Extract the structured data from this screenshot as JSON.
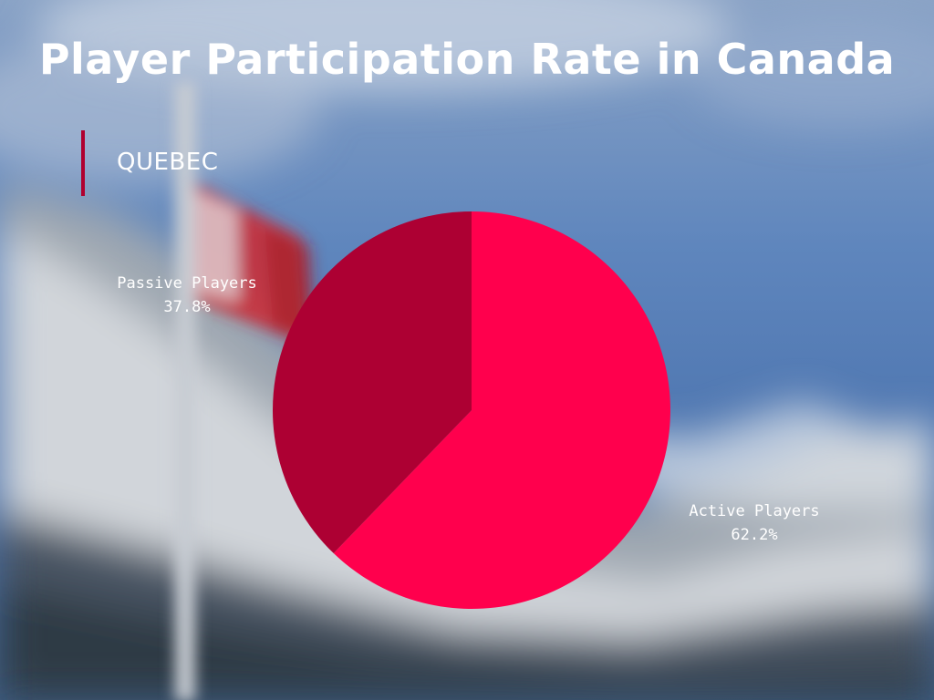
{
  "chart_data": {
    "type": "pie",
    "title": "Player Participation Rate in Canada",
    "subtitle": "QUEBEC",
    "slices": [
      {
        "label": "Active Players",
        "value": 62.2,
        "display": "62.2%",
        "color": "#ff004d"
      },
      {
        "label": "Passive Players",
        "value": 37.8,
        "display": "37.8%",
        "color": "#ad0033"
      }
    ],
    "start_angle_deg": 0,
    "direction": "clockwise"
  },
  "colors": {
    "accent_bar": "#b0002f",
    "text": "#ffffff"
  }
}
